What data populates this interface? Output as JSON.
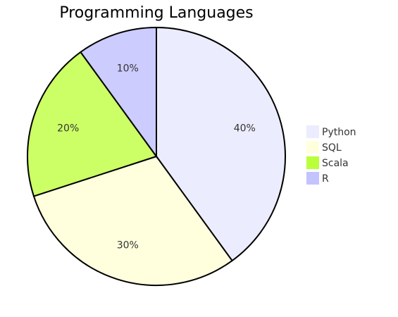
{
  "chart_data": {
    "type": "pie",
    "title": "Programming Languages",
    "start_angle_deg": 0,
    "direction": "clockwise",
    "slices": [
      {
        "label": "Python",
        "value": 40,
        "display": "40%",
        "color": "#ECECFF"
      },
      {
        "label": "SQL",
        "value": 30,
        "display": "30%",
        "color": "#FFFFDE"
      },
      {
        "label": "Scala",
        "value": 20,
        "display": "20%",
        "color": "#CCFF66"
      },
      {
        "label": "R",
        "value": 10,
        "display": "10%",
        "color": "#CCCCFF"
      }
    ],
    "legend": {
      "position": "right",
      "entries": [
        "Python",
        "SQL",
        "Scala",
        "R"
      ],
      "swatch_colors": [
        "#ECECFF",
        "#FFFFDE",
        "#B9FF3A",
        "#C3C3FF"
      ]
    }
  }
}
